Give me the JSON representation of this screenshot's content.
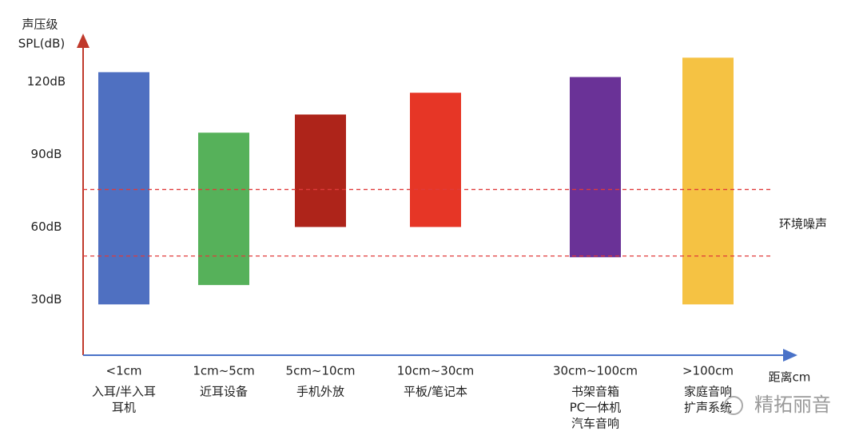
{
  "chart_data": {
    "type": "range-bar",
    "y_label": [
      "声压级",
      "SPL(dB)"
    ],
    "x_label": "距离cm",
    "categories": [
      "<1cm",
      "1cm~5cm",
      "5cm~10cm",
      "10cm~30cm",
      "30cm~100cm",
      ">100cm"
    ],
    "descriptions": [
      [
        "入耳/半入耳",
        "耳机"
      ],
      [
        "近耳设备"
      ],
      [
        "手机外放"
      ],
      [
        "平板/笔记本"
      ],
      [
        "书架音箱",
        "PC一体机",
        "汽车音响"
      ],
      [
        "家庭音响",
        "扩声系统"
      ]
    ],
    "low": [
      28,
      36,
      60,
      60,
      47.5,
      28
    ],
    "high": [
      124,
      99,
      106.5,
      115.5,
      122,
      130
    ],
    "colors": [
      "#4f70c1",
      "#56b15a",
      "#ae241a",
      "#e63626",
      "#6a3297",
      "#f5c243"
    ],
    "ylim": [
      7,
      139
    ],
    "yticks": [
      {
        "value": 30,
        "label": "30dB"
      },
      {
        "value": 60,
        "label": "60dB"
      },
      {
        "value": 90,
        "label": "90dB"
      },
      {
        "value": 120,
        "label": "120dB"
      }
    ],
    "noise_levels": [
      75.5,
      48
    ],
    "noise_label": "环境噪声",
    "noise_color": "#e03a3a",
    "watermark": "精拓丽音"
  }
}
